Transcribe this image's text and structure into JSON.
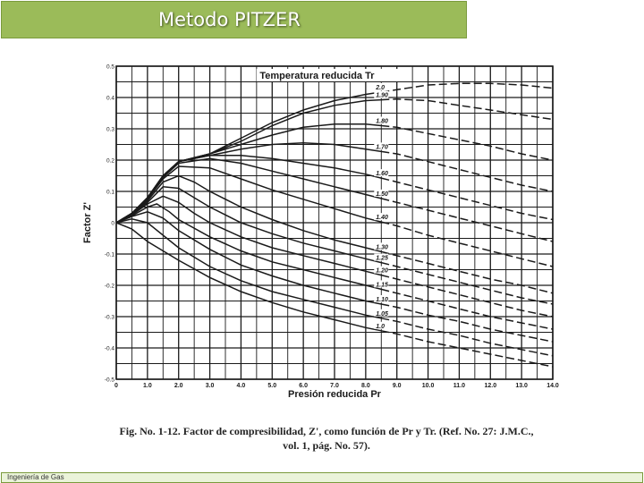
{
  "slide": {
    "title": "Metodo PITZER",
    "footer": "Ingeniería de Gas",
    "caption_line1": "Fig. No. 1-12. Factor de compresibilidad, Z', como función de Pr y Tr. (Ref. No. 27: J.M.C.,",
    "caption_line2": "vol. 1, pág. No. 57)."
  },
  "colors": {
    "title_bar": "#9bbb59",
    "title_text": "#ffffff",
    "footer_bar": "#eaf3d9",
    "ink": "#1a1a1a"
  },
  "chart_data": {
    "type": "line",
    "title": "Temperatura reducida Tr",
    "xlabel": "Presión reducida Pr",
    "ylabel": "Factor Z'",
    "xlim": [
      0,
      14
    ],
    "ylim": [
      -0.5,
      0.5
    ],
    "x_ticks": [
      "0",
      "1.0",
      "2.0",
      "3.0",
      "4.0",
      "5.0",
      "6.0",
      "7.0",
      "8.0",
      "9.0",
      "10.0",
      "11.0",
      "12.0",
      "13.0",
      "14.0"
    ],
    "y_ticks": [
      "0.5",
      "0.4",
      "0.3",
      "0.2",
      "0.1",
      "0",
      "-0.1",
      "-0.2",
      "-0.3",
      "-0.4",
      "-0.5"
    ],
    "grid": true,
    "series": [
      {
        "name": "2.0",
        "points": [
          [
            0,
            0
          ],
          [
            0.5,
            0.03
          ],
          [
            1,
            0.08
          ],
          [
            1.5,
            0.15
          ],
          [
            2,
            0.195
          ],
          [
            3,
            0.22
          ],
          [
            4,
            0.27
          ],
          [
            5,
            0.32
          ],
          [
            6,
            0.36
          ],
          [
            7,
            0.39
          ],
          [
            8,
            0.41
          ],
          [
            9,
            0.425
          ],
          [
            10,
            0.44
          ],
          [
            11,
            0.445
          ],
          [
            12,
            0.445
          ],
          [
            13,
            0.44
          ],
          [
            14,
            0.43
          ]
        ]
      },
      {
        "name": "1.90",
        "points": [
          [
            0,
            0
          ],
          [
            0.5,
            0.03
          ],
          [
            1,
            0.08
          ],
          [
            1.5,
            0.15
          ],
          [
            2,
            0.195
          ],
          [
            3,
            0.22
          ],
          [
            4,
            0.26
          ],
          [
            5,
            0.31
          ],
          [
            6,
            0.35
          ],
          [
            7,
            0.375
          ],
          [
            8,
            0.39
          ],
          [
            9,
            0.395
          ],
          [
            10,
            0.39
          ],
          [
            11,
            0.375
          ],
          [
            12,
            0.36
          ],
          [
            13,
            0.345
          ],
          [
            14,
            0.33
          ]
        ]
      },
      {
        "name": "1.80",
        "points": [
          [
            0,
            0
          ],
          [
            0.5,
            0.03
          ],
          [
            1,
            0.08
          ],
          [
            1.5,
            0.15
          ],
          [
            2,
            0.195
          ],
          [
            3,
            0.22
          ],
          [
            4,
            0.25
          ],
          [
            5,
            0.28
          ],
          [
            6,
            0.305
          ],
          [
            7,
            0.315
          ],
          [
            8,
            0.315
          ],
          [
            9,
            0.305
          ],
          [
            10,
            0.285
          ],
          [
            11,
            0.265
          ],
          [
            12,
            0.245
          ],
          [
            13,
            0.22
          ],
          [
            14,
            0.2
          ]
        ]
      },
      {
        "name": "1.70",
        "points": [
          [
            0,
            0
          ],
          [
            0.5,
            0.03
          ],
          [
            1,
            0.08
          ],
          [
            1.5,
            0.15
          ],
          [
            2,
            0.195
          ],
          [
            3,
            0.215
          ],
          [
            4,
            0.235
          ],
          [
            5,
            0.25
          ],
          [
            6,
            0.255
          ],
          [
            7,
            0.25
          ],
          [
            8,
            0.235
          ],
          [
            9,
            0.22
          ],
          [
            10,
            0.195
          ],
          [
            11,
            0.17
          ],
          [
            12,
            0.145
          ],
          [
            13,
            0.12
          ],
          [
            14,
            0.1
          ]
        ]
      },
      {
        "name": "1.60",
        "points": [
          [
            0,
            0
          ],
          [
            0.5,
            0.03
          ],
          [
            1,
            0.08
          ],
          [
            1.5,
            0.15
          ],
          [
            2,
            0.195
          ],
          [
            3,
            0.215
          ],
          [
            4,
            0.215
          ],
          [
            5,
            0.205
          ],
          [
            6,
            0.19
          ],
          [
            7,
            0.175
          ],
          [
            8,
            0.155
          ],
          [
            9,
            0.13
          ],
          [
            10,
            0.105
          ],
          [
            11,
            0.08
          ],
          [
            12,
            0.055
          ],
          [
            13,
            0.03
          ],
          [
            14,
            0.01
          ]
        ]
      },
      {
        "name": "1.50",
        "points": [
          [
            0,
            0
          ],
          [
            0.5,
            0.03
          ],
          [
            1,
            0.08
          ],
          [
            1.5,
            0.145
          ],
          [
            2,
            0.19
          ],
          [
            3,
            0.205
          ],
          [
            4,
            0.19
          ],
          [
            5,
            0.165
          ],
          [
            6,
            0.14
          ],
          [
            7,
            0.115
          ],
          [
            8,
            0.09
          ],
          [
            9,
            0.065
          ],
          [
            10,
            0.04
          ],
          [
            11,
            0.015
          ],
          [
            12,
            -0.01
          ],
          [
            13,
            -0.035
          ],
          [
            14,
            -0.06
          ]
        ]
      },
      {
        "name": "1.40",
        "points": [
          [
            0,
            0
          ],
          [
            0.5,
            0.03
          ],
          [
            1,
            0.075
          ],
          [
            1.5,
            0.14
          ],
          [
            2,
            0.18
          ],
          [
            3,
            0.175
          ],
          [
            4,
            0.14
          ],
          [
            5,
            0.105
          ],
          [
            6,
            0.075
          ],
          [
            7,
            0.045
          ],
          [
            8,
            0.015
          ],
          [
            9,
            -0.01
          ],
          [
            10,
            -0.04
          ],
          [
            11,
            -0.065
          ],
          [
            12,
            -0.09
          ],
          [
            13,
            -0.115
          ],
          [
            14,
            -0.14
          ]
        ]
      },
      {
        "name": "1.30",
        "points": [
          [
            0,
            0
          ],
          [
            0.5,
            0.028
          ],
          [
            1,
            0.07
          ],
          [
            1.5,
            0.13
          ],
          [
            2,
            0.15
          ],
          [
            2.5,
            0.13
          ],
          [
            3,
            0.1
          ],
          [
            4,
            0.05
          ],
          [
            5,
            0.01
          ],
          [
            6,
            -0.025
          ],
          [
            7,
            -0.055
          ],
          [
            8,
            -0.08
          ],
          [
            9,
            -0.105
          ],
          [
            10,
            -0.13
          ],
          [
            11,
            -0.155
          ],
          [
            12,
            -0.18
          ],
          [
            13,
            -0.2
          ],
          [
            14,
            -0.225
          ]
        ]
      },
      {
        "name": "1.25",
        "points": [
          [
            0,
            0
          ],
          [
            0.5,
            0.028
          ],
          [
            1,
            0.065
          ],
          [
            1.5,
            0.115
          ],
          [
            2,
            0.11
          ],
          [
            2.5,
            0.08
          ],
          [
            3,
            0.05
          ],
          [
            4,
            0.0
          ],
          [
            5,
            -0.035
          ],
          [
            6,
            -0.065
          ],
          [
            7,
            -0.09
          ],
          [
            8,
            -0.115
          ],
          [
            9,
            -0.14
          ],
          [
            10,
            -0.165
          ],
          [
            11,
            -0.19
          ],
          [
            12,
            -0.215
          ],
          [
            13,
            -0.24
          ],
          [
            14,
            -0.26
          ]
        ]
      },
      {
        "name": "1.20",
        "points": [
          [
            0,
            0
          ],
          [
            0.5,
            0.025
          ],
          [
            1,
            0.06
          ],
          [
            1.5,
            0.085
          ],
          [
            2,
            0.065
          ],
          [
            2.5,
            0.03
          ],
          [
            3,
            0.0
          ],
          [
            4,
            -0.045
          ],
          [
            5,
            -0.08
          ],
          [
            6,
            -0.105
          ],
          [
            7,
            -0.13
          ],
          [
            8,
            -0.155
          ],
          [
            9,
            -0.18
          ],
          [
            10,
            -0.205
          ],
          [
            11,
            -0.23
          ],
          [
            12,
            -0.255
          ],
          [
            13,
            -0.28
          ],
          [
            14,
            -0.3
          ]
        ]
      },
      {
        "name": "1.15",
        "points": [
          [
            0,
            0
          ],
          [
            0.5,
            0.022
          ],
          [
            1,
            0.05
          ],
          [
            1.3,
            0.06
          ],
          [
            1.7,
            0.035
          ],
          [
            2,
            0.01
          ],
          [
            3,
            -0.045
          ],
          [
            4,
            -0.09
          ],
          [
            5,
            -0.125
          ],
          [
            6,
            -0.15
          ],
          [
            7,
            -0.175
          ],
          [
            8,
            -0.2
          ],
          [
            9,
            -0.225
          ],
          [
            10,
            -0.25
          ],
          [
            11,
            -0.275
          ],
          [
            12,
            -0.3
          ],
          [
            13,
            -0.32
          ],
          [
            14,
            -0.34
          ]
        ]
      },
      {
        "name": "1.10",
        "points": [
          [
            0,
            0
          ],
          [
            0.5,
            0.02
          ],
          [
            1,
            0.035
          ],
          [
            1.5,
            0.015
          ],
          [
            2,
            -0.025
          ],
          [
            3,
            -0.085
          ],
          [
            4,
            -0.135
          ],
          [
            5,
            -0.17
          ],
          [
            6,
            -0.2
          ],
          [
            7,
            -0.225
          ],
          [
            8,
            -0.25
          ],
          [
            9,
            -0.27
          ],
          [
            10,
            -0.295
          ],
          [
            11,
            -0.315
          ],
          [
            12,
            -0.34
          ],
          [
            13,
            -0.36
          ],
          [
            14,
            -0.38
          ]
        ]
      },
      {
        "name": "1.05",
        "points": [
          [
            0,
            0
          ],
          [
            0.5,
            0.012
          ],
          [
            1,
            0.0
          ],
          [
            1.5,
            -0.04
          ],
          [
            2,
            -0.08
          ],
          [
            3,
            -0.14
          ],
          [
            4,
            -0.185
          ],
          [
            5,
            -0.22
          ],
          [
            6,
            -0.245
          ],
          [
            7,
            -0.27
          ],
          [
            8,
            -0.295
          ],
          [
            9,
            -0.315
          ],
          [
            10,
            -0.34
          ],
          [
            11,
            -0.36
          ],
          [
            12,
            -0.385
          ],
          [
            13,
            -0.405
          ],
          [
            14,
            -0.425
          ]
        ]
      },
      {
        "name": "1.0",
        "points": [
          [
            0,
            0
          ],
          [
            0.5,
            -0.02
          ],
          [
            1,
            -0.06
          ],
          [
            2,
            -0.12
          ],
          [
            3,
            -0.175
          ],
          [
            4,
            -0.22
          ],
          [
            5,
            -0.255
          ],
          [
            6,
            -0.285
          ],
          [
            7,
            -0.31
          ],
          [
            8,
            -0.335
          ],
          [
            9,
            -0.355
          ],
          [
            10,
            -0.38
          ],
          [
            11,
            -0.4
          ],
          [
            12,
            -0.42
          ],
          [
            13,
            -0.44
          ],
          [
            14,
            -0.46
          ]
        ]
      }
    ],
    "dashed_from_x": 8.5
  }
}
